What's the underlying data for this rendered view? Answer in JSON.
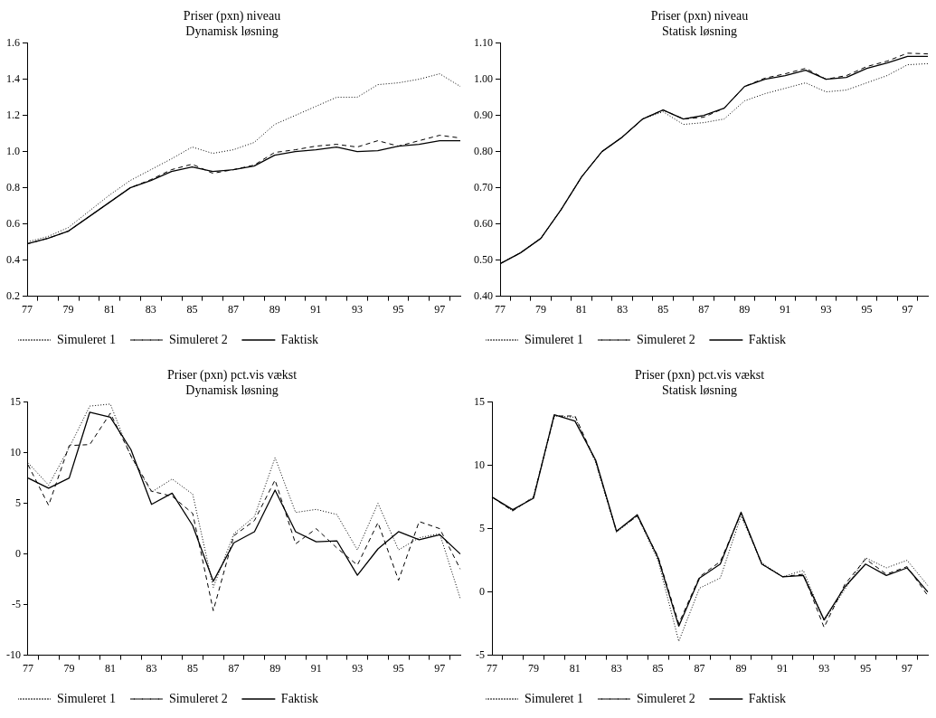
{
  "chart_data": [
    {
      "type": "line",
      "title": "Priser (pxn) niveau",
      "subtitle": "Dynamisk løsning",
      "categories": [
        "77",
        null,
        "79",
        null,
        "81",
        null,
        "83",
        null,
        "85",
        null,
        "87",
        null,
        "89",
        null,
        "91",
        null,
        "93",
        null,
        "95",
        null,
        "97",
        null
      ],
      "ylim": [
        0.2,
        1.6
      ],
      "yticks": [
        {
          "value": 0.2,
          "label": "0.2"
        },
        {
          "value": 0.4,
          "label": "0.4"
        },
        {
          "value": 0.6,
          "label": "0.6"
        },
        {
          "value": 0.8,
          "label": "0.8"
        },
        {
          "value": 1.0,
          "label": "1.0"
        },
        {
          "value": 1.2,
          "label": "1.2"
        },
        {
          "value": 1.4,
          "label": "1.4"
        },
        {
          "value": 1.6,
          "label": "1.6"
        }
      ],
      "grid": false,
      "legend": "bottom",
      "marker": "none",
      "series": [
        {
          "name": "Simuleret 1",
          "color": "#000000",
          "line_style": "dotted",
          "values": [
            0.5,
            0.53,
            0.58,
            0.67,
            0.76,
            0.84,
            0.9,
            0.96,
            1.025,
            0.99,
            1.01,
            1.05,
            1.15,
            1.2,
            1.25,
            1.3,
            1.3,
            1.37,
            1.38,
            1.4,
            1.43,
            1.36
          ]
        },
        {
          "name": "Simuleret 2",
          "color": "#000000",
          "line_style": "dashed",
          "values": [
            0.49,
            0.52,
            0.56,
            0.64,
            0.72,
            0.8,
            0.845,
            0.9,
            0.93,
            0.88,
            0.9,
            0.925,
            0.995,
            1.01,
            1.03,
            1.04,
            1.025,
            1.06,
            1.03,
            1.06,
            1.09,
            1.075
          ]
        },
        {
          "name": "Faktisk",
          "color": "#000000",
          "line_style": "solid",
          "values": [
            0.49,
            0.52,
            0.56,
            0.64,
            0.72,
            0.8,
            0.84,
            0.89,
            0.915,
            0.89,
            0.9,
            0.92,
            0.98,
            1.0,
            1.01,
            1.025,
            1.0,
            1.005,
            1.03,
            1.04,
            1.06,
            1.06
          ]
        }
      ]
    },
    {
      "type": "line",
      "title": "Priser (pxn) niveau",
      "subtitle": "Statisk løsning",
      "categories": [
        "77",
        null,
        "79",
        null,
        "81",
        null,
        "83",
        null,
        "85",
        null,
        "87",
        null,
        "89",
        null,
        "91",
        null,
        "93",
        null,
        "95",
        null,
        "97",
        null
      ],
      "ylim": [
        0.4,
        1.1
      ],
      "yticks": [
        {
          "value": 0.4,
          "label": "0.40"
        },
        {
          "value": 0.5,
          "label": "0.50"
        },
        {
          "value": 0.6,
          "label": "0.60"
        },
        {
          "value": 0.7,
          "label": "0.70"
        },
        {
          "value": 0.8,
          "label": "0.80"
        },
        {
          "value": 0.9,
          "label": "0.90"
        },
        {
          "value": 1.0,
          "label": "1.00"
        },
        {
          "value": 1.1,
          "label": "1.10"
        }
      ],
      "grid": false,
      "legend": "bottom",
      "marker": "none",
      "series": [
        {
          "name": "Simuleret 1",
          "color": "#000000",
          "line_style": "dotted",
          "values": [
            0.49,
            0.52,
            0.56,
            0.64,
            0.73,
            0.8,
            0.84,
            0.89,
            0.91,
            0.875,
            0.88,
            0.89,
            0.94,
            0.96,
            0.975,
            0.99,
            0.965,
            0.97,
            0.99,
            1.01,
            1.04,
            1.043
          ]
        },
        {
          "name": "Simuleret 2",
          "color": "#000000",
          "line_style": "dashed",
          "values": [
            0.49,
            0.52,
            0.56,
            0.64,
            0.73,
            0.8,
            0.84,
            0.89,
            0.915,
            0.89,
            0.895,
            0.92,
            0.98,
            1.003,
            1.015,
            1.03,
            1.0,
            1.01,
            1.035,
            1.05,
            1.072,
            1.07
          ]
        },
        {
          "name": "Faktisk",
          "color": "#000000",
          "line_style": "solid",
          "values": [
            0.49,
            0.52,
            0.56,
            0.64,
            0.73,
            0.8,
            0.84,
            0.89,
            0.915,
            0.89,
            0.9,
            0.92,
            0.98,
            1.0,
            1.01,
            1.025,
            1.0,
            1.005,
            1.03,
            1.045,
            1.063,
            1.063
          ]
        }
      ]
    },
    {
      "type": "line",
      "title": "Priser (pxn) pct.vis vækst",
      "subtitle": "Dynamisk løsning",
      "categories": [
        "77",
        null,
        "79",
        null,
        "81",
        null,
        "83",
        null,
        "85",
        null,
        "87",
        null,
        "89",
        null,
        "91",
        null,
        "93",
        null,
        "95",
        null,
        "97",
        null
      ],
      "ylim": [
        -10,
        15
      ],
      "yticks": [
        -10,
        -5,
        0,
        5,
        10,
        15
      ],
      "grid": false,
      "legend": "bottom",
      "marker": "none",
      "series": [
        {
          "name": "Simuleret 1",
          "color": "#000000",
          "line_style": "dotted",
          "values": [
            9,
            6.8,
            10.5,
            14.6,
            14.8,
            9.6,
            6.1,
            7.4,
            5.9,
            -3.3,
            2,
            3.7,
            9.5,
            4.1,
            4.4,
            3.9,
            0.4,
            5,
            0.4,
            1.6,
            2,
            -4.4
          ]
        },
        {
          "name": "Simuleret 2",
          "color": "#000000",
          "line_style": "dashed",
          "values": [
            8.8,
            4.8,
            10.7,
            10.8,
            13.9,
            9.7,
            6.2,
            5.7,
            4,
            -5.6,
            1.8,
            3.3,
            7.3,
            1,
            2.5,
            0.6,
            -1.1,
            3.1,
            -2.6,
            3.2,
            2.5,
            -1.5
          ]
        },
        {
          "name": "Faktisk",
          "color": "#000000",
          "line_style": "solid",
          "values": [
            7.5,
            6.5,
            7.5,
            14,
            13.5,
            10.3,
            4.9,
            6,
            2.8,
            -2.7,
            1.1,
            2.2,
            6.3,
            2.2,
            1.2,
            1.3,
            -2.1,
            0.5,
            2.2,
            1.4,
            1.9,
            0
          ]
        }
      ]
    },
    {
      "type": "line",
      "title": "Priser (pxn) pct.vis vækst",
      "subtitle": "Statisk løsning",
      "categories": [
        "77",
        null,
        "79",
        null,
        "81",
        null,
        "83",
        null,
        "85",
        null,
        "87",
        null,
        "89",
        null,
        "91",
        null,
        "93",
        null,
        "95",
        null,
        "97",
        null
      ],
      "ylim": [
        -5,
        15
      ],
      "yticks": [
        -5,
        0,
        5,
        10,
        15
      ],
      "grid": false,
      "legend": "bottom",
      "marker": "none",
      "series": [
        {
          "name": "Simuleret 1",
          "color": "#000000",
          "line_style": "dotted",
          "values": [
            7.5,
            6.4,
            7.5,
            13.9,
            13.8,
            10.2,
            4.7,
            6,
            2.5,
            -3.9,
            0.3,
            1.1,
            6.0,
            2.3,
            1.2,
            1.7,
            -2.3,
            0.2,
            2.7,
            1.9,
            2.5,
            0.5
          ]
        },
        {
          "name": "Simuleret 2",
          "color": "#000000",
          "line_style": "dashed",
          "values": [
            7.5,
            6.4,
            7.5,
            13.9,
            13.9,
            10.3,
            4.8,
            6.0,
            2.8,
            -2.5,
            1.2,
            2.4,
            6.2,
            2.2,
            1.2,
            1.4,
            -2.8,
            0.6,
            2.6,
            1.4,
            2.0,
            -0.3
          ]
        },
        {
          "name": "Faktisk",
          "color": "#000000",
          "line_style": "solid",
          "values": [
            7.5,
            6.5,
            7.4,
            14,
            13.5,
            10.4,
            4.8,
            6.1,
            2.7,
            -2.7,
            1.1,
            2.2,
            6.3,
            2.2,
            1.2,
            1.3,
            -2.2,
            0.4,
            2.2,
            1.3,
            1.9,
            0
          ]
        }
      ]
    }
  ]
}
